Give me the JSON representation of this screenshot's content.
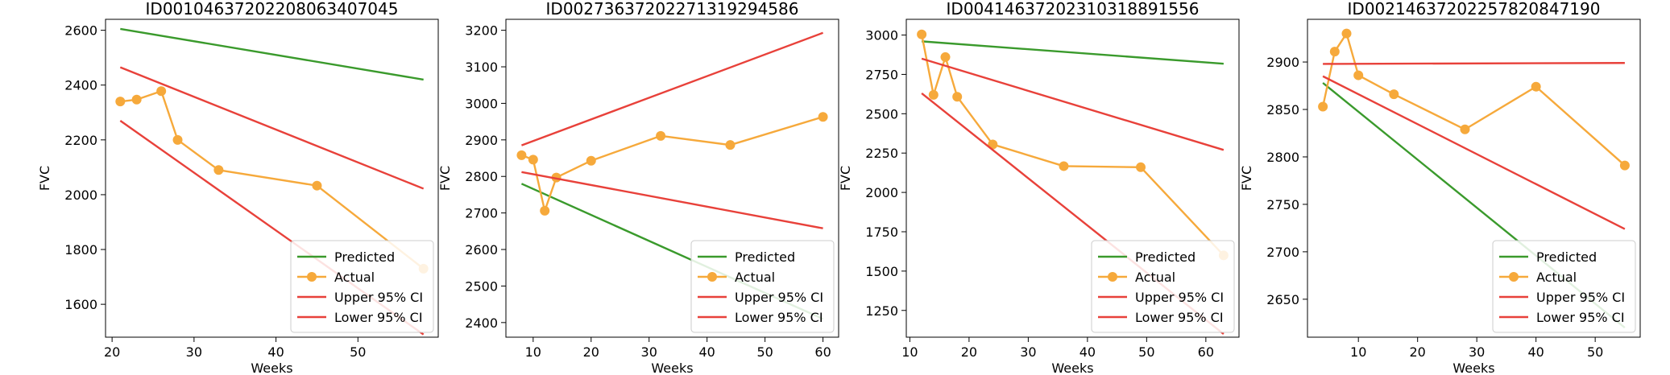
{
  "legend_labels": [
    "Predicted",
    "Actual",
    "Upper 95% CI",
    "Lower 95% CI"
  ],
  "colors": {
    "predicted": "#3a9a2c",
    "actual": "#f6a93b",
    "ci": "#e8413a"
  },
  "chart_data": [
    {
      "type": "line",
      "title": "ID00104637202208063407045",
      "xlabel": "Weeks",
      "ylabel": "FVC",
      "xlim": [
        19.2,
        59.8
      ],
      "ylim": [
        1480,
        2640
      ],
      "xticks": [
        20,
        30,
        40,
        50
      ],
      "yticks": [
        1600,
        1800,
        2000,
        2200,
        2400,
        2600
      ],
      "grid": false,
      "legend_position": "lower right",
      "series": [
        {
          "name": "Predicted",
          "kind": "line",
          "x": [
            21,
            58
          ],
          "y": [
            2605,
            2420
          ]
        },
        {
          "name": "Actual",
          "kind": "line-marker",
          "x": [
            21,
            23,
            26,
            28,
            33,
            45,
            58
          ],
          "y": [
            2340,
            2347,
            2378,
            2200,
            2090,
            2033,
            1730
          ]
        },
        {
          "name": "Upper 95% CI",
          "kind": "line",
          "x": [
            21,
            58
          ],
          "y": [
            2465,
            2022
          ]
        },
        {
          "name": "Lower 95% CI",
          "kind": "line",
          "x": [
            21,
            58
          ],
          "y": [
            2270,
            1490
          ]
        }
      ]
    },
    {
      "type": "line",
      "title": "ID00273637202271319294586",
      "xlabel": "Weeks",
      "ylabel": "FVC",
      "xlim": [
        5.3,
        62.7
      ],
      "ylim": [
        2360,
        3230
      ],
      "xticks": [
        10,
        20,
        30,
        40,
        50,
        60
      ],
      "yticks": [
        2400,
        2500,
        2600,
        2700,
        2800,
        2900,
        3000,
        3100,
        3200
      ],
      "grid": false,
      "legend_position": "lower right",
      "series": [
        {
          "name": "Predicted",
          "kind": "line",
          "x": [
            8,
            60
          ],
          "y": [
            2780,
            2410
          ]
        },
        {
          "name": "Actual",
          "kind": "line-marker",
          "x": [
            8,
            10,
            12,
            14,
            20,
            32,
            44,
            60
          ],
          "y": [
            2858,
            2846,
            2706,
            2797,
            2843,
            2911,
            2886,
            2963
          ]
        },
        {
          "name": "Upper 95% CI",
          "kind": "line",
          "x": [
            8,
            60
          ],
          "y": [
            2885,
            3193
          ]
        },
        {
          "name": "Lower 95% CI",
          "kind": "line",
          "x": [
            8,
            60
          ],
          "y": [
            2812,
            2658
          ]
        }
      ]
    },
    {
      "type": "line",
      "title": "ID00414637202310318891556",
      "xlabel": "Weeks",
      "ylabel": "FVC",
      "xlim": [
        9.4,
        65.6
      ],
      "ylim": [
        1080,
        3100
      ],
      "xticks": [
        10,
        20,
        30,
        40,
        50,
        60
      ],
      "yticks": [
        1250,
        1500,
        1750,
        2000,
        2250,
        2500,
        2750,
        3000
      ],
      "grid": false,
      "legend_position": "lower right",
      "series": [
        {
          "name": "Predicted",
          "kind": "line",
          "x": [
            12,
            63
          ],
          "y": [
            2960,
            2818
          ]
        },
        {
          "name": "Actual",
          "kind": "line-marker",
          "x": [
            12,
            14,
            16,
            18,
            24,
            36,
            49,
            63
          ],
          "y": [
            3004,
            2620,
            2860,
            2608,
            2305,
            2167,
            2160,
            1600
          ]
        },
        {
          "name": "Upper 95% CI",
          "kind": "line",
          "x": [
            12,
            63
          ],
          "y": [
            2850,
            2270
          ]
        },
        {
          "name": "Lower 95% CI",
          "kind": "line",
          "x": [
            12,
            63
          ],
          "y": [
            2630,
            1100
          ]
        }
      ]
    },
    {
      "type": "line",
      "title": "ID00214637202257820847190",
      "xlabel": "Weeks",
      "ylabel": "FVC",
      "xlim": [
        1.4,
        57.6
      ],
      "ylim": [
        2610,
        2945
      ],
      "xticks": [
        10,
        20,
        30,
        40,
        50
      ],
      "yticks": [
        2650,
        2700,
        2750,
        2800,
        2850,
        2900
      ],
      "grid": false,
      "legend_position": "lower right",
      "series": [
        {
          "name": "Predicted",
          "kind": "line",
          "x": [
            4,
            55
          ],
          "y": [
            2878,
            2620
          ]
        },
        {
          "name": "Actual",
          "kind": "line-marker",
          "x": [
            4,
            6,
            8,
            10,
            16,
            28,
            40,
            55
          ],
          "y": [
            2853,
            2911,
            2930,
            2886,
            2866,
            2829,
            2874,
            2791
          ]
        },
        {
          "name": "Upper 95% CI",
          "kind": "line",
          "x": [
            4,
            55
          ],
          "y": [
            2898,
            2899
          ]
        },
        {
          "name": "Lower 95% CI",
          "kind": "line",
          "x": [
            4,
            55
          ],
          "y": [
            2885,
            2724
          ]
        }
      ]
    }
  ]
}
